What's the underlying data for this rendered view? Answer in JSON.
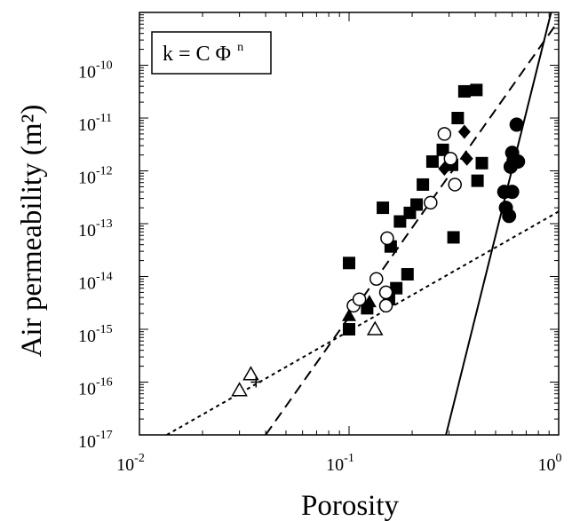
{
  "chart_data": {
    "type": "scatter",
    "title": "",
    "xlabel": "Porosity",
    "ylabel": "Air permeability (m²)",
    "xscale": "log",
    "yscale": "log",
    "xlim": [
      0.01,
      1
    ],
    "ylim": [
      1e-17,
      1e-09
    ],
    "grid": false,
    "x_tick_labels": [
      {
        "v": 0.01,
        "base": "10",
        "exp": "-2"
      },
      {
        "v": 0.1,
        "base": "10",
        "exp": "-1"
      },
      {
        "v": 1,
        "base": "10",
        "exp": "0"
      }
    ],
    "y_tick_labels": [
      {
        "v": 1e-17,
        "base": "10",
        "exp": "-17"
      },
      {
        "v": 1e-16,
        "base": "10",
        "exp": "-16"
      },
      {
        "v": 1e-15,
        "base": "10",
        "exp": "-15"
      },
      {
        "v": 1e-14,
        "base": "10",
        "exp": "-14"
      },
      {
        "v": 1e-13,
        "base": "10",
        "exp": "-13"
      },
      {
        "v": 1e-12,
        "base": "10",
        "exp": "-12"
      },
      {
        "v": 1e-11,
        "base": "10",
        "exp": "-11"
      },
      {
        "v": 1e-10,
        "base": "10",
        "exp": "-10"
      }
    ],
    "annotation": {
      "text": "k = C Φ",
      "superscript": "n"
    },
    "series": [
      {
        "marker": "filled-square",
        "points": [
          [
            0.1,
            1.8e-14
          ],
          [
            0.1,
            1e-15
          ],
          [
            0.122,
            2.5e-15
          ],
          [
            0.145,
            2e-13
          ],
          [
            0.155,
            3.7e-15
          ],
          [
            0.158,
            3.7e-14
          ],
          [
            0.168,
            6e-15
          ],
          [
            0.175,
            1.1e-13
          ],
          [
            0.19,
            1.1e-14
          ],
          [
            0.195,
            1.6e-13
          ],
          [
            0.21,
            2.3e-13
          ],
          [
            0.225,
            5.5e-13
          ],
          [
            0.25,
            1.5e-12
          ],
          [
            0.28,
            2.5e-12
          ],
          [
            0.31,
            1.3e-12
          ],
          [
            0.315,
            5.5e-14
          ],
          [
            0.33,
            1e-11
          ],
          [
            0.355,
            3.2e-11
          ],
          [
            0.405,
            3.4e-11
          ],
          [
            0.41,
            6.5e-13
          ],
          [
            0.43,
            1.4e-12
          ]
        ]
      },
      {
        "marker": "open-circle",
        "points": [
          [
            0.105,
            2.8e-15
          ],
          [
            0.112,
            3.7e-15
          ],
          [
            0.135,
            9e-15
          ],
          [
            0.15,
            2.8e-15
          ],
          [
            0.15,
            5e-15
          ],
          [
            0.152,
            5.3e-14
          ],
          [
            0.245,
            2.5e-13
          ],
          [
            0.285,
            5e-12
          ],
          [
            0.305,
            1.7e-12
          ],
          [
            0.32,
            5.5e-13
          ]
        ]
      },
      {
        "marker": "filled-triangle",
        "points": [
          [
            0.1,
            1.8e-15
          ],
          [
            0.125,
            3.3e-15
          ]
        ]
      },
      {
        "marker": "open-triangle",
        "points": [
          [
            0.03,
            7e-17
          ],
          [
            0.034,
            1.4e-16
          ],
          [
            0.133,
            1e-15
          ]
        ]
      },
      {
        "marker": "filled-diamond",
        "points": [
          [
            0.285,
            1.1e-12
          ],
          [
            0.355,
            5.5e-12
          ],
          [
            0.365,
            1.7e-12
          ]
        ]
      },
      {
        "marker": "filled-circle",
        "points": [
          [
            0.55,
            4e-13
          ],
          [
            0.56,
            2e-13
          ],
          [
            0.58,
            1.4e-13
          ],
          [
            0.59,
            1.2e-12
          ],
          [
            0.6,
            2.2e-12
          ],
          [
            0.6,
            4e-13
          ],
          [
            0.61,
            1.6e-12
          ],
          [
            0.63,
            7.5e-12
          ],
          [
            0.64,
            1.5e-12
          ]
        ]
      },
      {
        "marker": "plus",
        "points": [
          [
            0.036,
            1e-16
          ]
        ]
      }
    ],
    "fit_lines": [
      {
        "style": "long-dash",
        "points": [
          [
            0.04,
            1e-17
          ],
          [
            1.0,
            7e-10
          ]
        ]
      },
      {
        "style": "short-dash",
        "points": [
          [
            0.0135,
            1e-17
          ],
          [
            1.0,
            1.7e-13
          ]
        ]
      },
      {
        "style": "solid",
        "points": [
          [
            0.29,
            1e-17
          ],
          [
            0.92,
            1e-09
          ]
        ]
      }
    ]
  }
}
